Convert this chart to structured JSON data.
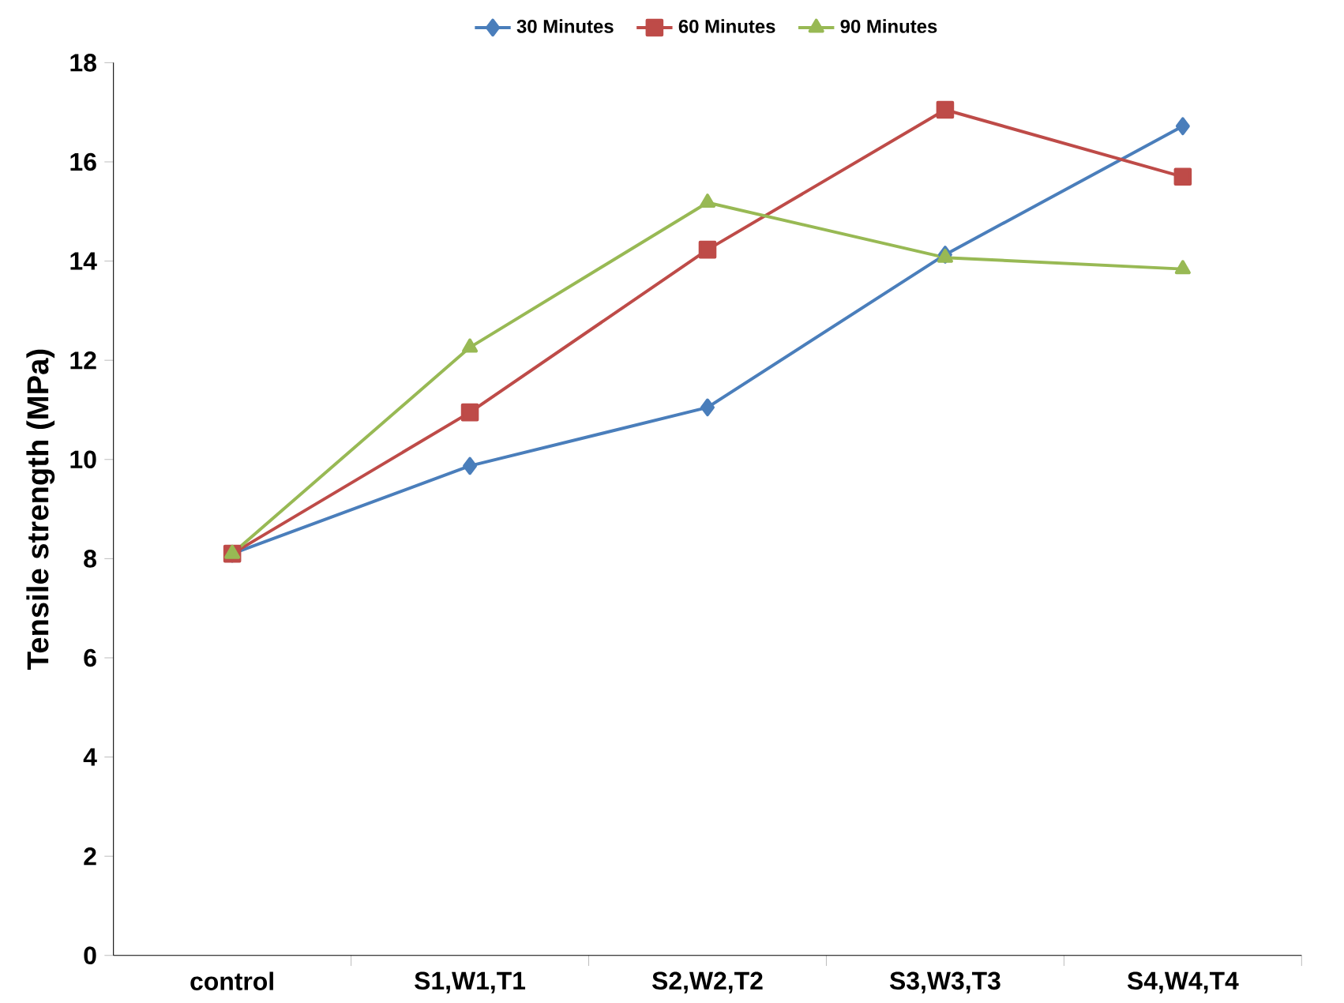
{
  "chart_data": {
    "type": "line",
    "ylabel": "Tensile strength (MPa)",
    "categories": [
      "control",
      "S1,W1,T1",
      "S2,W2,T2",
      "S3,W3,T3",
      "S4,W4,T4"
    ],
    "series": [
      {
        "name": "30 Minutes",
        "color": "#4a7ebb",
        "marker": "diamond",
        "values": [
          8.1,
          9.87,
          11.05,
          14.13,
          16.72
        ]
      },
      {
        "name": "60 Minutes",
        "color": "#be4b48",
        "marker": "square",
        "values": [
          8.1,
          10.95,
          14.23,
          17.05,
          15.7
        ]
      },
      {
        "name": "90 Minutes",
        "color": "#98b954",
        "marker": "triangle",
        "values": [
          8.1,
          12.26,
          15.18,
          14.07,
          13.84
        ]
      }
    ],
    "ylim": [
      0,
      18
    ],
    "yticks": [
      0,
      2,
      4,
      6,
      8,
      10,
      12,
      14,
      16,
      18
    ],
    "grid": false,
    "legend": "top",
    "line_style": "solid"
  }
}
